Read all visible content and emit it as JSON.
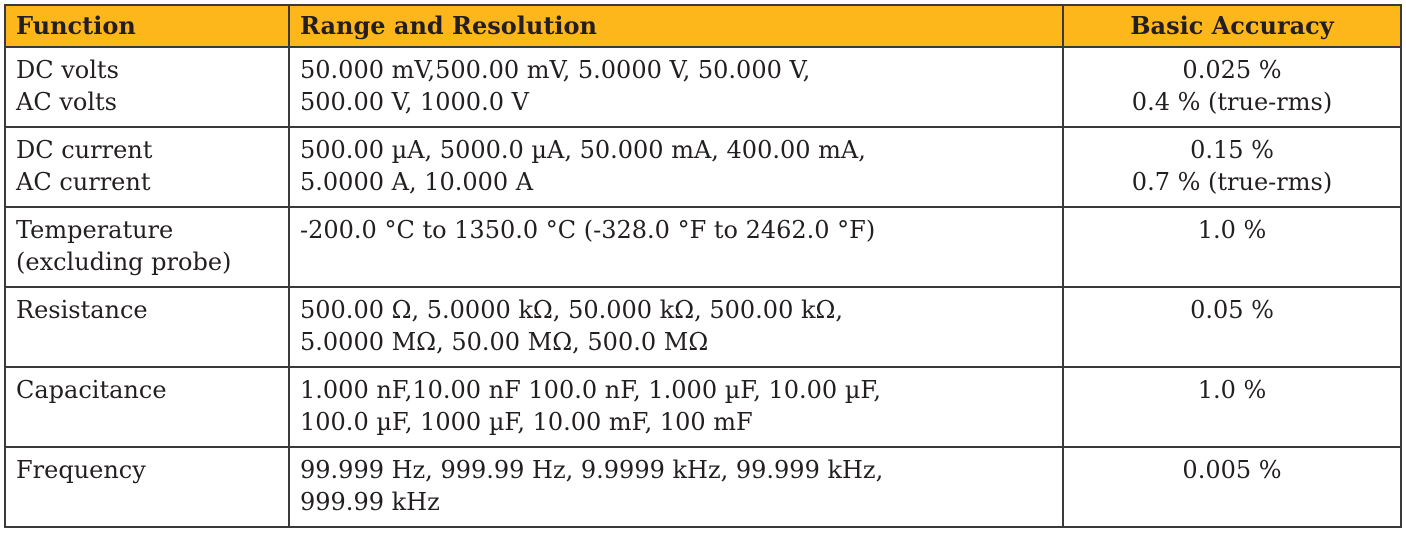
{
  "header": {
    "function": "Function",
    "range": "Range and Resolution",
    "accuracy": "Basic Accuracy"
  },
  "header_color": "#fdb71a",
  "rows": [
    {
      "function": [
        "DC volts",
        "AC volts"
      ],
      "range": [
        "50.000 mV,500.00 mV, 5.0000 V, 50.000 V,",
        "500.00 V, 1000.0 V"
      ],
      "accuracy": [
        "0.025 %",
        "0.4 % (true-rms)"
      ]
    },
    {
      "function": [
        "DC current",
        "AC current"
      ],
      "range": [
        "500.00 µA, 5000.0 µA, 50.000 mA, 400.00 mA,",
        "5.0000 A, 10.000 A"
      ],
      "accuracy": [
        "0.15 %",
        "0.7 % (true-rms)"
      ]
    },
    {
      "function": [
        "Temperature",
        "(excluding probe)"
      ],
      "range": [
        "-200.0 °C to 1350.0 °C (-328.0 °F to 2462.0 °F)",
        ""
      ],
      "accuracy": [
        "1.0 %",
        ""
      ]
    },
    {
      "function": [
        "Resistance",
        ""
      ],
      "range": [
        "500.00 Ω, 5.0000 kΩ, 50.000 kΩ, 500.00 kΩ,",
        "5.0000 MΩ, 50.00 MΩ, 500.0 MΩ"
      ],
      "accuracy": [
        "0.05 %",
        ""
      ]
    },
    {
      "function": [
        "Capacitance",
        ""
      ],
      "range": [
        "1.000 nF,10.00 nF 100.0 nF, 1.000 µF, 10.00 µF,",
        "100.0 µF, 1000 µF, 10.00 mF, 100 mF"
      ],
      "accuracy": [
        "1.0 %",
        ""
      ]
    },
    {
      "function": [
        "Frequency",
        ""
      ],
      "range": [
        "99.999 Hz, 999.99 Hz, 9.9999 kHz, 99.999 kHz,",
        "999.99 kHz"
      ],
      "accuracy": [
        "0.005 %",
        ""
      ]
    }
  ]
}
